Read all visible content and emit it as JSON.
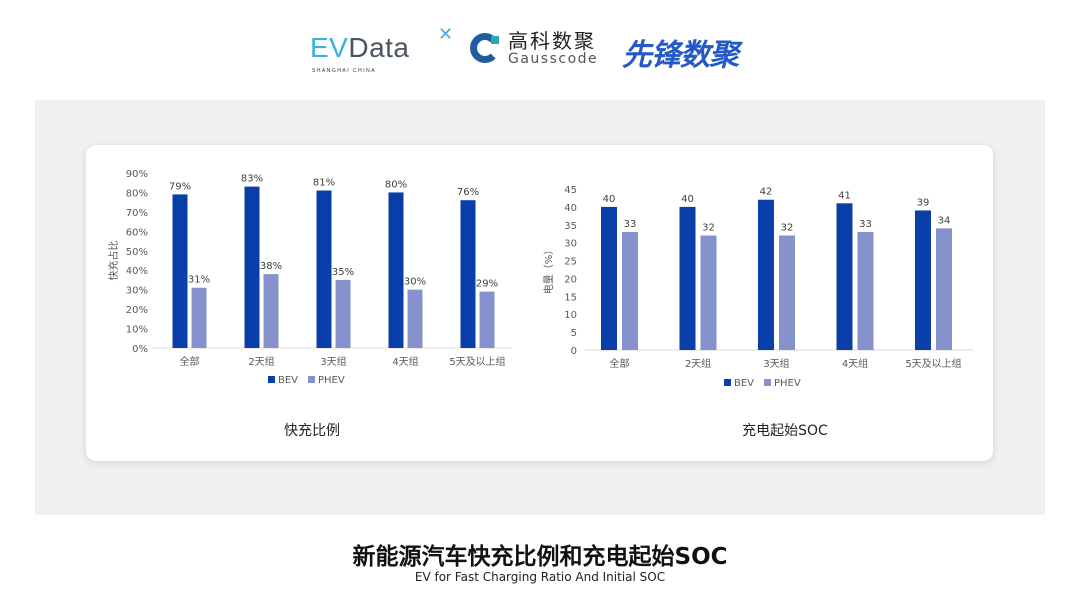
{
  "logos": {
    "evdata": "EVData",
    "evdata_sub": "SHANGHAI CHINA",
    "gauss_cn": "高科数聚",
    "gauss_en": "Gausscode",
    "xianfeng": "先锋数聚"
  },
  "colors": {
    "bev": "#0a3ea8",
    "phev": "#8592cc",
    "axis_text": "#595959",
    "panel": "#f0f0f0"
  },
  "chart_data": [
    {
      "type": "bar",
      "title": "快充比例",
      "ylabel": "快充占比",
      "xlabel": "",
      "categories": [
        "全部",
        "2天组",
        "3天组",
        "4天组",
        "5天及以上组"
      ],
      "ylim": [
        0,
        90
      ],
      "yticks": [
        0,
        10,
        20,
        30,
        40,
        50,
        60,
        70,
        80,
        90
      ],
      "tick_suffix": "%",
      "label_suffix": "%",
      "series": [
        {
          "name": "BEV",
          "values": [
            79,
            83,
            81,
            80,
            76
          ]
        },
        {
          "name": "PHEV",
          "values": [
            31,
            38,
            35,
            30,
            29
          ]
        }
      ],
      "legend": "bottom",
      "grid": false
    },
    {
      "type": "bar",
      "title": "充电起始SOC",
      "ylabel": "电量（%）",
      "xlabel": "",
      "categories": [
        "全部",
        "2天组",
        "3天组",
        "4天组",
        "5天及以上组"
      ],
      "ylim": [
        0,
        45
      ],
      "yticks": [
        0,
        5,
        10,
        15,
        20,
        25,
        30,
        35,
        40,
        45
      ],
      "tick_suffix": "",
      "label_suffix": "",
      "series": [
        {
          "name": "BEV",
          "values": [
            40,
            40,
            42,
            41,
            39
          ]
        },
        {
          "name": "PHEV",
          "values": [
            33,
            32,
            32,
            33,
            34
          ]
        }
      ],
      "legend": "bottom",
      "grid": false
    }
  ],
  "footer": {
    "title": "新能源汽车快充比例和充电起始SOC",
    "subtitle": "EV for Fast Charging Ratio And Initial SOC"
  }
}
